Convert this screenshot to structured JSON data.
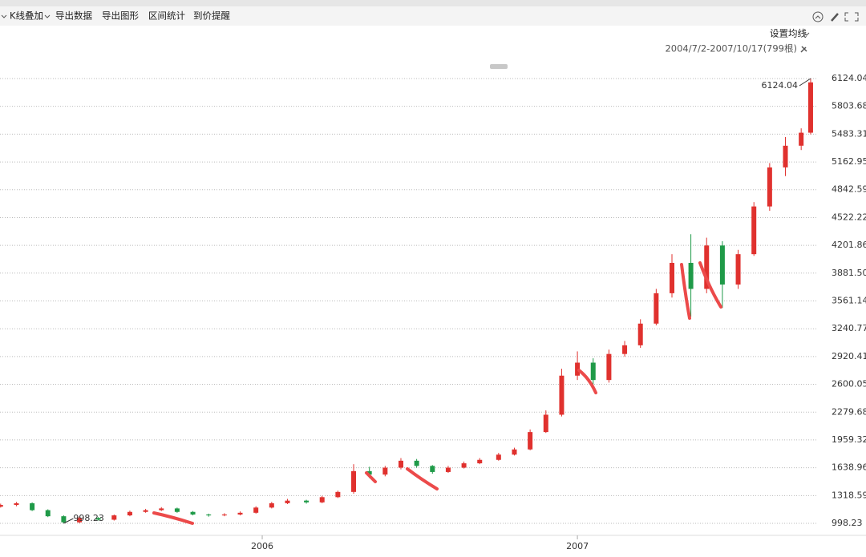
{
  "toolbar": {
    "items": [
      "K线叠加",
      "导出数据",
      "导出图形",
      "区间统计",
      "到价提醒"
    ],
    "ma_setting": "设置均线",
    "range": "2004/7/2-2007/10/17(799根)"
  },
  "chart_data": {
    "type": "candlestick",
    "x": [
      2005.17,
      2005.22,
      2005.27,
      2005.32,
      2005.37,
      2005.42,
      2005.48,
      2005.53,
      2005.58,
      2005.63,
      2005.68,
      2005.73,
      2005.78,
      2005.83,
      2005.88,
      2005.93,
      2005.98,
      2006.03,
      2006.08,
      2006.14,
      2006.19,
      2006.24,
      2006.29,
      2006.34,
      2006.39,
      2006.44,
      2006.49,
      2006.54,
      2006.59,
      2006.64,
      2006.69,
      2006.75,
      2006.8,
      2006.85,
      2006.9,
      2006.95,
      2007.0,
      2007.05,
      2007.1,
      2007.15,
      2007.2,
      2007.25,
      2007.3,
      2007.36,
      2007.41,
      2007.46,
      2007.51,
      2007.56,
      2007.61,
      2007.66,
      2007.71,
      2007.74
    ],
    "open": [
      1190,
      1210,
      1230,
      1150,
      1080,
      1010,
      1060,
      1040,
      1090,
      1130,
      1150,
      1170,
      1130,
      1100,
      1090,
      1100,
      1120,
      1180,
      1230,
      1260,
      1240,
      1300,
      1360,
      1600,
      1560,
      1640,
      1720,
      1660,
      1590,
      1640,
      1690,
      1730,
      1790,
      1850,
      2050,
      2250,
      2700,
      2850,
      2650,
      2950,
      3050,
      3300,
      3650,
      4000,
      3700,
      4200,
      3750,
      4100,
      4650,
      5100,
      5350,
      5500
    ],
    "high": [
      1225,
      1245,
      1240,
      1160,
      1090,
      1075,
      1070,
      1100,
      1145,
      1165,
      1185,
      1180,
      1140,
      1110,
      1115,
      1135,
      1195,
      1245,
      1280,
      1270,
      1315,
      1375,
      1680,
      1650,
      1660,
      1750,
      1740,
      1670,
      1660,
      1710,
      1750,
      1810,
      1870,
      2080,
      2300,
      2780,
      2980,
      2900,
      3000,
      3100,
      3350,
      3700,
      4100,
      4330,
      4290,
      4250,
      4150,
      4700,
      5150,
      5450,
      5550,
      6124.04
    ],
    "low": [
      1180,
      1195,
      1140,
      1070,
      998.23,
      1000,
      1030,
      1030,
      1080,
      1120,
      1140,
      1120,
      1090,
      1075,
      1080,
      1090,
      1110,
      1170,
      1220,
      1225,
      1230,
      1290,
      1340,
      1520,
      1540,
      1620,
      1640,
      1570,
      1580,
      1630,
      1680,
      1720,
      1780,
      1840,
      2040,
      2230,
      2650,
      2600,
      2620,
      2920,
      3020,
      3280,
      3600,
      3380,
      3650,
      3480,
      3700,
      4080,
      4600,
      5000,
      5300,
      5480
    ],
    "close": [
      1210,
      1230,
      1150,
      1080,
      1010,
      1060,
      1040,
      1090,
      1130,
      1150,
      1170,
      1130,
      1100,
      1090,
      1100,
      1120,
      1180,
      1230,
      1260,
      1240,
      1300,
      1360,
      1600,
      1560,
      1640,
      1720,
      1660,
      1590,
      1640,
      1690,
      1730,
      1790,
      1850,
      2050,
      2250,
      2700,
      2850,
      2650,
      2950,
      3050,
      3300,
      3650,
      4000,
      3700,
      4200,
      3750,
      4100,
      4650,
      5100,
      5350,
      5500,
      6080
    ],
    "up_color": "#e0312e",
    "down_color": "#1f9a48",
    "xlim": [
      2005.168,
      2007.763
    ],
    "xticks": [
      2006,
      2007
    ],
    "ylim": [
      998.23,
      6124.04
    ],
    "yticks": [
      998.23,
      1318.59,
      1638.96,
      1959.32,
      2279.68,
      2600.05,
      2920.41,
      3240.77,
      3561.14,
      {
        "value": 3881.5,
        "label": "3881.50"
      },
      4201.86,
      4522.22,
      4842.59,
      5162.95,
      5483.31,
      5803.68,
      6124.04
    ],
    "grid": true,
    "annotations": [
      {
        "x": 2007.74,
        "y": 6124.04
      },
      {
        "x": 2005.37,
        "y": 998.23
      }
    ]
  }
}
